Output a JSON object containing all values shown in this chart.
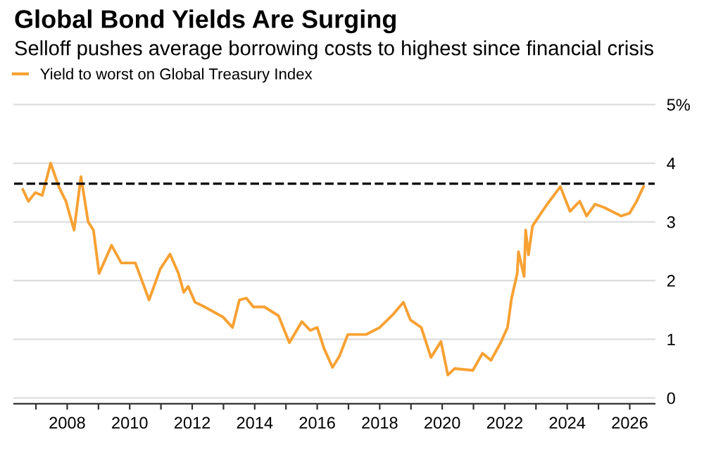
{
  "chart_data": {
    "type": "line",
    "title": "Global Bond Yields Are Surging",
    "subtitle": "Selloff pushes average borrowing costs to highest since financial crisis",
    "series": [
      {
        "name": "Yield to worst on Global Treasury Index",
        "color": "#f7a133",
        "x": [
          2006.58,
          2006.76,
          2006.98,
          2007.2,
          2007.47,
          2007.73,
          2007.96,
          2008.22,
          2008.44,
          2008.67,
          2008.84,
          2009.02,
          2009.42,
          2009.73,
          2010.18,
          2010.62,
          2010.98,
          2011.29,
          2011.56,
          2011.73,
          2011.87,
          2012.09,
          2012.4,
          2012.98,
          2013.29,
          2013.51,
          2013.73,
          2013.96,
          2014.31,
          2014.76,
          2015.11,
          2015.51,
          2015.78,
          2016.0,
          2016.22,
          2016.49,
          2016.71,
          2016.98,
          2017.56,
          2018.0,
          2018.44,
          2018.76,
          2018.98,
          2019.33,
          2019.64,
          2019.96,
          2020.18,
          2020.4,
          2020.98,
          2021.29,
          2021.56,
          2021.87,
          2022.09,
          2022.22,
          2022.4,
          2022.44,
          2022.62,
          2022.67,
          2022.76,
          2022.89,
          2023.33,
          2023.78,
          2024.09,
          2024.4,
          2024.62,
          2024.89,
          2025.16,
          2025.42,
          2025.73,
          2026.0,
          2026.22,
          2026.44
        ],
        "values": [
          3.55,
          3.35,
          3.5,
          3.45,
          4.0,
          3.6,
          3.35,
          2.86,
          3.77,
          3.0,
          2.86,
          2.12,
          2.6,
          2.3,
          2.3,
          1.67,
          2.2,
          2.45,
          2.12,
          1.8,
          1.9,
          1.63,
          1.55,
          1.38,
          1.2,
          1.67,
          1.7,
          1.55,
          1.55,
          1.4,
          0.94,
          1.3,
          1.15,
          1.2,
          0.84,
          0.52,
          0.71,
          1.08,
          1.08,
          1.2,
          1.43,
          1.63,
          1.33,
          1.2,
          0.69,
          0.96,
          0.39,
          0.5,
          0.47,
          0.76,
          0.64,
          0.94,
          1.2,
          1.7,
          2.12,
          2.49,
          2.07,
          2.86,
          2.44,
          2.93,
          3.28,
          3.6,
          3.18,
          3.35,
          3.1,
          3.3,
          3.25,
          3.18,
          3.1,
          3.15,
          3.35,
          3.6
        ]
      }
    ],
    "xlim": [
      2006.3,
      2026.8
    ],
    "ylim": [
      -0.1,
      5
    ],
    "xticks": [
      {
        "value": 2007,
        "label": null
      },
      2008,
      {
        "value": 2009,
        "label": null
      },
      2010,
      {
        "value": 2011,
        "label": null
      },
      2012,
      {
        "value": 2013,
        "label": null
      },
      2014,
      {
        "value": 2015,
        "label": null
      },
      2016,
      {
        "value": 2017,
        "label": null
      },
      2018,
      {
        "value": 2019,
        "label": null
      },
      2020,
      {
        "value": 2021,
        "label": null
      },
      2022,
      {
        "value": 2023,
        "label": null
      },
      2024,
      {
        "value": 2025,
        "label": null
      },
      2026
    ],
    "yticks": [
      0,
      1,
      2,
      3,
      4,
      {
        "value": 5,
        "label": "5%"
      }
    ],
    "ref_lines": [
      {
        "axis": "y",
        "value": 3.65,
        "color": "#000000",
        "line_style": "dashed"
      }
    ],
    "grid": "y",
    "legend": "top left",
    "line_style": "solid",
    "marker": "none"
  }
}
